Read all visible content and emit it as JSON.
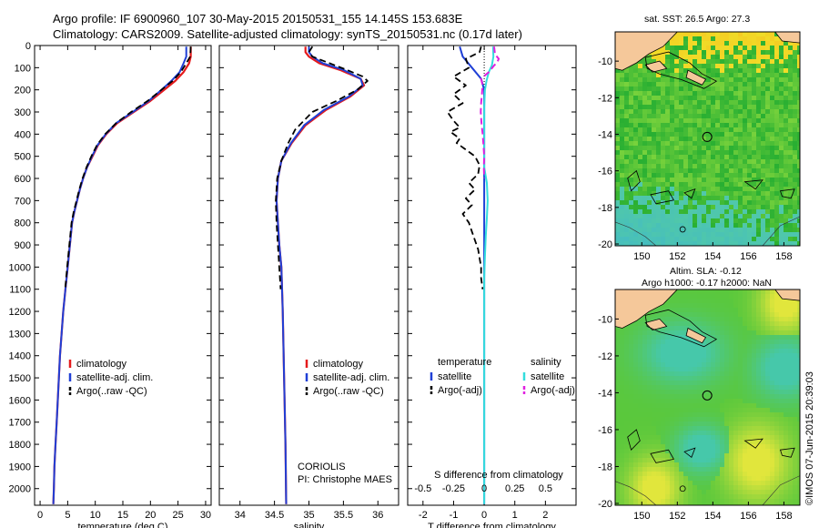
{
  "header": {
    "title_line1": "Argo profile: IF 6900960_107 30-May-2015 20150531_155 14.145S 153.683E",
    "title_line2": "Climatology: CARS2009. Satellite-adjusted climatology: synTS_20150531.nc (0.17d later)"
  },
  "side_stamp": "©IMOS 07-Jun-2015 20:39:03",
  "colors": {
    "climatology": "#e41a1c",
    "satellite": "#1f3fd6",
    "argo": "#000000",
    "sal_satellite": "#33dddd",
    "sal_argo": "#e020e0"
  },
  "chart_data": [
    {
      "type": "line",
      "id": "temperature-panel",
      "xlabel": "temperature (deg C)",
      "xlim": [
        -1,
        31
      ],
      "ylim": [
        0,
        2075
      ],
      "xticks": [
        0,
        5,
        10,
        15,
        20,
        25,
        30
      ],
      "yticks": [
        0,
        100,
        200,
        300,
        400,
        500,
        600,
        700,
        800,
        900,
        1000,
        1100,
        1200,
        1300,
        1400,
        1500,
        1600,
        1700,
        1800,
        1900,
        2000
      ],
      "legend": [
        "climatology",
        "satellite-adj. clim.",
        "Argo(..raw -QC)"
      ],
      "series": [
        {
          "name": "climatology",
          "style": "climatology",
          "points": [
            [
              27.3,
              5
            ],
            [
              27.3,
              50
            ],
            [
              27.0,
              80
            ],
            [
              26.0,
              120
            ],
            [
              24.5,
              160
            ],
            [
              22.5,
              200
            ],
            [
              20.0,
              250
            ],
            [
              17.0,
              300
            ],
            [
              14.0,
              350
            ],
            [
              12.0,
              400
            ],
            [
              10.5,
              450
            ],
            [
              9.5,
              500
            ],
            [
              8.5,
              550
            ],
            [
              7.8,
              600
            ],
            [
              7.2,
              650
            ],
            [
              6.7,
              700
            ],
            [
              6.2,
              750
            ],
            [
              5.8,
              800
            ],
            [
              5.4,
              900
            ],
            [
              5.0,
              1000
            ],
            [
              4.6,
              1100
            ],
            [
              4.2,
              1200
            ],
            [
              3.9,
              1300
            ],
            [
              3.6,
              1400
            ],
            [
              3.4,
              1500
            ],
            [
              3.2,
              1600
            ],
            [
              3.0,
              1700
            ],
            [
              2.8,
              1800
            ],
            [
              2.6,
              1900
            ],
            [
              2.5,
              2000
            ],
            [
              2.4,
              2070
            ]
          ]
        },
        {
          "name": "satellite-adj. clim.",
          "style": "satellite",
          "points": [
            [
              26.5,
              5
            ],
            [
              26.5,
              50
            ],
            [
              26.0,
              80
            ],
            [
              25.3,
              120
            ],
            [
              23.8,
              160
            ],
            [
              22.0,
              200
            ],
            [
              19.7,
              250
            ],
            [
              16.8,
              300
            ],
            [
              13.8,
              350
            ],
            [
              11.9,
              400
            ],
            [
              10.4,
              450
            ],
            [
              9.4,
              500
            ],
            [
              8.5,
              550
            ],
            [
              7.8,
              600
            ],
            [
              7.2,
              650
            ],
            [
              6.7,
              700
            ],
            [
              6.2,
              750
            ],
            [
              5.8,
              800
            ],
            [
              5.4,
              900
            ],
            [
              5.0,
              1000
            ],
            [
              4.6,
              1100
            ],
            [
              4.2,
              1200
            ],
            [
              3.9,
              1300
            ],
            [
              3.6,
              1400
            ],
            [
              3.4,
              1500
            ],
            [
              3.2,
              1600
            ],
            [
              3.0,
              1700
            ],
            [
              2.8,
              1800
            ],
            [
              2.6,
              1900
            ],
            [
              2.5,
              2000
            ],
            [
              2.4,
              2070
            ]
          ]
        },
        {
          "name": "Argo(..raw -QC)",
          "style": "argo",
          "points": [
            [
              27.3,
              5
            ],
            [
              27.2,
              50
            ],
            [
              26.5,
              80
            ],
            [
              25.5,
              120
            ],
            [
              24.0,
              160
            ],
            [
              22.0,
              200
            ],
            [
              19.5,
              250
            ],
            [
              16.5,
              300
            ],
            [
              13.8,
              350
            ],
            [
              11.8,
              400
            ],
            [
              10.3,
              450
            ],
            [
              9.3,
              500
            ],
            [
              8.4,
              550
            ],
            [
              7.7,
              600
            ],
            [
              7.1,
              650
            ],
            [
              6.6,
              700
            ],
            [
              6.1,
              750
            ],
            [
              5.7,
              800
            ],
            [
              5.3,
              900
            ],
            [
              4.9,
              1000
            ],
            [
              4.55,
              1100
            ]
          ]
        }
      ]
    },
    {
      "type": "line",
      "id": "salinity-panel",
      "xlabel": "salinity",
      "xlim": [
        33.7,
        36.3
      ],
      "ylim": [
        0,
        2075
      ],
      "xticks": [
        34,
        34.5,
        35,
        35.5,
        36
      ],
      "legend": [
        "climatology",
        "satellite-adj. clim.",
        "Argo(..raw -QC)"
      ],
      "notes": [
        "CORIOLIS",
        "PI: Christophe MAES"
      ],
      "series": [
        {
          "name": "climatology",
          "style": "climatology",
          "points": [
            [
              34.95,
              5
            ],
            [
              34.95,
              30
            ],
            [
              35.0,
              50
            ],
            [
              35.15,
              80
            ],
            [
              35.45,
              110
            ],
            [
              35.75,
              150
            ],
            [
              35.8,
              180
            ],
            [
              35.6,
              230
            ],
            [
              35.25,
              290
            ],
            [
              34.95,
              360
            ],
            [
              34.75,
              440
            ],
            [
              34.6,
              520
            ],
            [
              34.55,
              600
            ],
            [
              34.53,
              700
            ],
            [
              34.55,
              800
            ],
            [
              34.57,
              900
            ],
            [
              34.6,
              1000
            ],
            [
              34.62,
              1200
            ],
            [
              34.64,
              1500
            ],
            [
              34.66,
              1800
            ],
            [
              34.67,
              2070
            ]
          ]
        },
        {
          "name": "satellite-adj. clim.",
          "style": "satellite",
          "points": [
            [
              35.0,
              5
            ],
            [
              35.0,
              30
            ],
            [
              35.05,
              50
            ],
            [
              35.2,
              80
            ],
            [
              35.5,
              110
            ],
            [
              35.75,
              150
            ],
            [
              35.78,
              180
            ],
            [
              35.58,
              230
            ],
            [
              35.22,
              290
            ],
            [
              34.93,
              360
            ],
            [
              34.74,
              440
            ],
            [
              34.6,
              520
            ],
            [
              34.55,
              600
            ],
            [
              34.53,
              700
            ],
            [
              34.55,
              800
            ],
            [
              34.57,
              900
            ],
            [
              34.6,
              1000
            ],
            [
              34.62,
              1200
            ],
            [
              34.64,
              1500
            ],
            [
              34.66,
              1800
            ],
            [
              34.67,
              2070
            ]
          ]
        },
        {
          "name": "Argo(..raw -QC)",
          "style": "argo",
          "points": [
            [
              35.05,
              5
            ],
            [
              35.0,
              30
            ],
            [
              35.05,
              50
            ],
            [
              35.3,
              80
            ],
            [
              35.55,
              110
            ],
            [
              35.78,
              140
            ],
            [
              35.85,
              160
            ],
            [
              35.7,
              200
            ],
            [
              35.4,
              250
            ],
            [
              35.05,
              300
            ],
            [
              34.8,
              380
            ],
            [
              34.7,
              440
            ],
            [
              34.6,
              520
            ],
            [
              34.54,
              600
            ],
            [
              34.52,
              700
            ],
            [
              34.53,
              800
            ],
            [
              34.55,
              900
            ],
            [
              34.57,
              1000
            ],
            [
              34.59,
              1100
            ]
          ]
        }
      ]
    },
    {
      "type": "line",
      "id": "difference-panel",
      "xlabel": "T difference from climatology",
      "xlabel_top": "S difference from climatology",
      "xlim": [
        -2.5,
        3
      ],
      "ylim": [
        0,
        2075
      ],
      "xticks": [
        -2,
        -1,
        0,
        1,
        2
      ],
      "s_ticks": [
        -0.5,
        -0.25,
        0,
        0.25,
        0.5
      ],
      "legend_titles": [
        "temperature",
        "salinity"
      ],
      "legend": [
        "satellite",
        "Argo(-adj)",
        "satellite",
        "Argo(-adj)"
      ],
      "series": [
        {
          "name": "satellite",
          "quantity": "temperature",
          "style": "satellite",
          "points": [
            [
              -0.8,
              5
            ],
            [
              -0.7,
              50
            ],
            [
              -0.4,
              100
            ],
            [
              -0.1,
              150
            ],
            [
              0,
              200
            ],
            [
              0,
              300
            ],
            [
              0,
              500
            ],
            [
              0,
              2070
            ]
          ]
        },
        {
          "name": "Argo(-adj)",
          "quantity": "temperature",
          "style": "argo",
          "points": [
            [
              -0.1,
              5
            ],
            [
              -0.15,
              30
            ],
            [
              -0.6,
              60
            ],
            [
              -0.5,
              100
            ],
            [
              -1.0,
              140
            ],
            [
              -0.6,
              180
            ],
            [
              -1.0,
              220
            ],
            [
              -0.7,
              260
            ],
            [
              -1.2,
              300
            ],
            [
              -1.0,
              340
            ],
            [
              -0.8,
              370
            ],
            [
              -1.1,
              390
            ],
            [
              -0.8,
              420
            ],
            [
              -0.9,
              440
            ],
            [
              -0.6,
              470
            ],
            [
              -0.3,
              500
            ],
            [
              -0.15,
              540
            ],
            [
              -0.2,
              580
            ],
            [
              -0.5,
              620
            ],
            [
              -0.3,
              650
            ],
            [
              -0.6,
              690
            ],
            [
              -0.4,
              720
            ],
            [
              -0.7,
              760
            ],
            [
              -0.5,
              800
            ],
            [
              -0.4,
              840
            ],
            [
              -0.3,
              880
            ],
            [
              -0.2,
              920
            ],
            [
              -0.15,
              960
            ],
            [
              -0.1,
              1000
            ],
            [
              -0.1,
              1050
            ],
            [
              -0.05,
              1100
            ]
          ]
        },
        {
          "name": "satellite",
          "quantity": "salinity",
          "style": "sal_satellite",
          "points": [
            [
              1.15,
              5
            ],
            [
              1.2,
              50
            ],
            [
              1.0,
              90
            ],
            [
              0.6,
              120
            ],
            [
              0.3,
              160
            ],
            [
              0.1,
              200
            ],
            [
              0,
              280
            ],
            [
              0,
              450
            ],
            [
              0,
              550
            ],
            [
              0.35,
              620
            ],
            [
              0.45,
              700
            ],
            [
              0.35,
              780
            ],
            [
              0.2,
              860
            ],
            [
              0.1,
              950
            ],
            [
              0,
              1050
            ],
            [
              0,
              2070
            ]
          ]
        },
        {
          "name": "Argo(-adj)",
          "quantity": "salinity",
          "style": "sal_argo",
          "points": [
            [
              1.3,
              5
            ],
            [
              1.4,
              40
            ],
            [
              1.9,
              60
            ],
            [
              1.7,
              75
            ],
            [
              1.3,
              90
            ],
            [
              0.6,
              120
            ],
            [
              -0.4,
              150
            ],
            [
              -0.2,
              180
            ],
            [
              -0.3,
              220
            ],
            [
              -0.4,
              260
            ],
            [
              -0.45,
              300
            ],
            [
              -0.35,
              350
            ],
            [
              -0.2,
              400
            ],
            [
              -0.1,
              450
            ],
            [
              0,
              500
            ],
            [
              -0.05,
              550
            ],
            [
              0,
              600
            ]
          ]
        }
      ]
    }
  ],
  "map_sst": {
    "title": "sat. SST: 26.5 Argo: 27.3",
    "xticks": [
      150,
      152,
      154,
      156,
      158
    ],
    "yticks": [
      -10,
      -12,
      -14,
      -16,
      -18,
      -20
    ],
    "xlim": [
      148.5,
      158.9
    ],
    "ylim": [
      -20.1,
      -8.4
    ],
    "argo_location": [
      153.683,
      -14.145
    ]
  },
  "map_sla": {
    "title_line1": "Altim. SLA: -0.12",
    "title_line2": "Argo h1000: -0.17 h2000: NaN",
    "xticks": [
      150,
      152,
      154,
      156,
      158
    ],
    "yticks": [
      -10,
      -12,
      -14,
      -16,
      -18,
      -20
    ],
    "xlim": [
      148.5,
      158.9
    ],
    "ylim": [
      -20.1,
      -8.4
    ],
    "argo_location": [
      153.683,
      -14.145
    ]
  }
}
